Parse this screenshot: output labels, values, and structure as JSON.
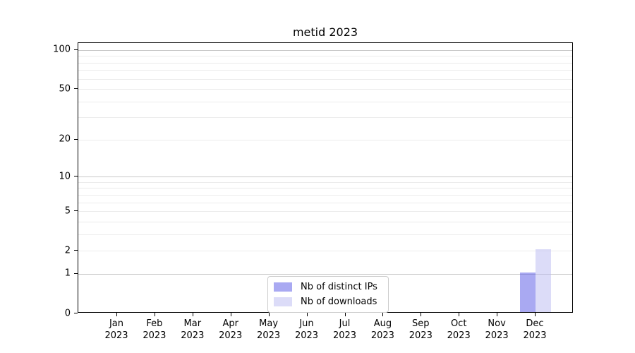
{
  "figure": {
    "title": "metid 2023"
  },
  "chart_data": {
    "type": "bar",
    "title": "metid 2023",
    "categories": [
      "Jan 2023",
      "Feb 2023",
      "Mar 2023",
      "Apr 2023",
      "May 2023",
      "Jun 2023",
      "Jul 2023",
      "Aug 2023",
      "Sep 2023",
      "Oct 2023",
      "Nov 2023",
      "Dec 2023"
    ],
    "series": [
      {
        "name": "Nb of distinct IPs",
        "color": "#a9a9f2",
        "values": [
          0,
          0,
          0,
          0,
          0,
          0,
          0,
          0,
          0,
          0,
          0,
          1
        ]
      },
      {
        "name": "Nb of downloads",
        "color": "#dcdcf8",
        "values": [
          0,
          0,
          0,
          0,
          0,
          0,
          0,
          0,
          0,
          0,
          0,
          2
        ]
      }
    ],
    "xlabel": "",
    "ylabel": "",
    "yscale": "log1p",
    "ylim": [
      0,
      113
    ],
    "yticks": [
      0,
      1,
      2,
      5,
      10,
      20,
      50,
      100
    ],
    "grid": true,
    "legend_position": "lower center",
    "colors": {
      "major_grid": "#c8c8c8",
      "minor_grid": "#ececec",
      "axis": "#000000",
      "background": "#ffffff"
    }
  }
}
